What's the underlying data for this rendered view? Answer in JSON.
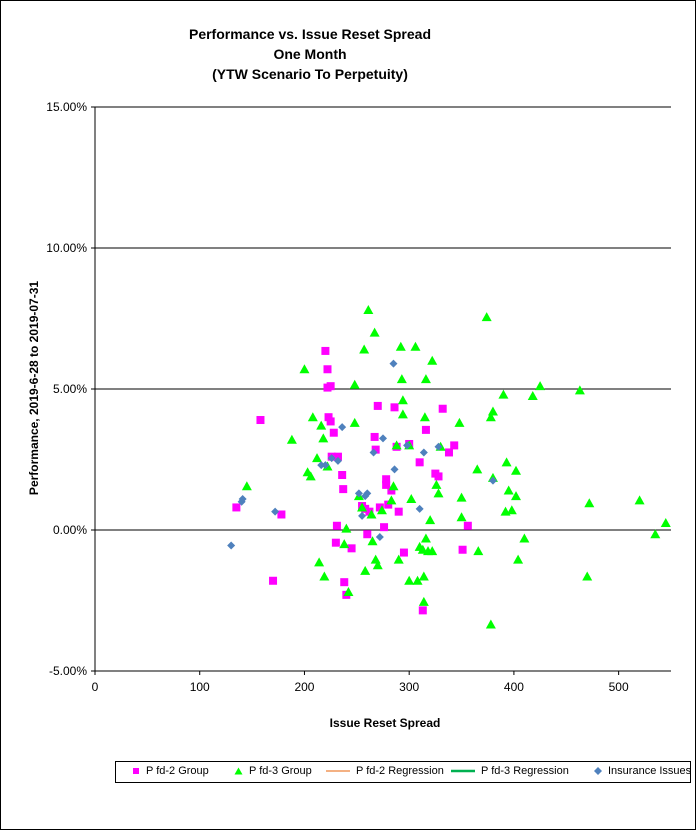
{
  "chart_data": {
    "type": "scatter",
    "title_lines": [
      "Performance vs. Issue Reset Spread",
      "One Month",
      "(YTW Scenario To Perpetuity)"
    ],
    "xlabel": "Issue Reset Spread",
    "ylabel": "Performance, 2019-6-28  to 2019-07-31",
    "xlim": [
      0,
      550
    ],
    "ylim": [
      -5,
      15
    ],
    "x_ticks": [
      0,
      100,
      200,
      300,
      400,
      500
    ],
    "y_ticks": [
      15,
      10,
      5,
      0,
      -5
    ],
    "x_tick_labels": [
      "0",
      "100",
      "200",
      "300",
      "400",
      "500"
    ],
    "y_tick_labels": [
      "15.00%",
      "10.00%",
      "5.00%",
      "0.00%",
      "-5.00%"
    ],
    "grid": "horizontal",
    "legend_position": "bottom",
    "series": [
      {
        "name": "P fd-2 Group",
        "marker": "square",
        "color": "#ff00ff",
        "points": [
          [
            135,
            0.8
          ],
          [
            158,
            3.9
          ],
          [
            170,
            -1.8
          ],
          [
            178,
            0.55
          ],
          [
            220,
            6.35
          ],
          [
            222,
            5.7
          ],
          [
            222,
            5.05
          ],
          [
            223,
            4.0
          ],
          [
            225,
            5.1
          ],
          [
            225,
            3.85
          ],
          [
            226,
            2.6
          ],
          [
            228,
            3.45
          ],
          [
            230,
            -0.45
          ],
          [
            231,
            0.15
          ],
          [
            232,
            2.6
          ],
          [
            236,
            1.95
          ],
          [
            237,
            1.45
          ],
          [
            238,
            -1.85
          ],
          [
            240,
            -2.3
          ],
          [
            245,
            -0.65
          ],
          [
            255,
            0.85
          ],
          [
            258,
            0.75
          ],
          [
            260,
            -0.15
          ],
          [
            262,
            0.65
          ],
          [
            267,
            3.3
          ],
          [
            268,
            2.85
          ],
          [
            270,
            4.4
          ],
          [
            272,
            0.8
          ],
          [
            276,
            0.1
          ],
          [
            278,
            1.8
          ],
          [
            278,
            1.6
          ],
          [
            280,
            0.9
          ],
          [
            283,
            1.4
          ],
          [
            286,
            4.35
          ],
          [
            288,
            2.95
          ],
          [
            290,
            0.65
          ],
          [
            295,
            -0.8
          ],
          [
            300,
            3.05
          ],
          [
            310,
            2.4
          ],
          [
            313,
            -2.85
          ],
          [
            316,
            3.55
          ],
          [
            325,
            2.0
          ],
          [
            328,
            1.9
          ],
          [
            332,
            4.3
          ],
          [
            338,
            2.75
          ],
          [
            343,
            3.0
          ],
          [
            351,
            -0.7
          ],
          [
            356,
            0.15
          ]
        ]
      },
      {
        "name": "P fd-3 Group",
        "marker": "triangle",
        "color": "#00ff00",
        "points": [
          [
            145,
            1.55
          ],
          [
            188,
            3.2
          ],
          [
            200,
            5.7
          ],
          [
            203,
            2.05
          ],
          [
            206,
            1.9
          ],
          [
            208,
            4.0
          ],
          [
            212,
            2.55
          ],
          [
            214,
            -1.15
          ],
          [
            216,
            3.7
          ],
          [
            218,
            3.25
          ],
          [
            219,
            -1.65
          ],
          [
            222,
            2.25
          ],
          [
            238,
            -0.5
          ],
          [
            240,
            0.05
          ],
          [
            242,
            -2.2
          ],
          [
            248,
            3.8
          ],
          [
            248,
            5.15
          ],
          [
            252,
            1.2
          ],
          [
            255,
            0.8
          ],
          [
            257,
            6.4
          ],
          [
            258,
            -1.45
          ],
          [
            261,
            7.8
          ],
          [
            264,
            0.55
          ],
          [
            265,
            -0.4
          ],
          [
            267,
            7.0
          ],
          [
            268,
            -1.05
          ],
          [
            270,
            -1.25
          ],
          [
            274,
            0.7
          ],
          [
            283,
            1.05
          ],
          [
            285,
            1.55
          ],
          [
            288,
            3.0
          ],
          [
            290,
            -1.05
          ],
          [
            292,
            6.5
          ],
          [
            293,
            5.35
          ],
          [
            294,
            4.6
          ],
          [
            294,
            4.1
          ],
          [
            300,
            3.0
          ],
          [
            302,
            1.1
          ],
          [
            300,
            -1.8
          ],
          [
            306,
            6.5
          ],
          [
            308,
            -1.8
          ],
          [
            310,
            -0.6
          ],
          [
            313,
            -0.7
          ],
          [
            314,
            -1.65
          ],
          [
            314,
            -2.55
          ],
          [
            315,
            4.0
          ],
          [
            316,
            -0.3
          ],
          [
            316,
            5.35
          ],
          [
            318,
            -0.75
          ],
          [
            320,
            0.35
          ],
          [
            322,
            6.0
          ],
          [
            322,
            -0.75
          ],
          [
            326,
            1.6
          ],
          [
            328,
            1.3
          ],
          [
            330,
            2.95
          ],
          [
            348,
            3.8
          ],
          [
            350,
            1.15
          ],
          [
            350,
            0.45
          ],
          [
            365,
            2.15
          ],
          [
            366,
            -0.75
          ],
          [
            374,
            7.55
          ],
          [
            378,
            -3.35
          ],
          [
            378,
            4.0
          ],
          [
            380,
            4.2
          ],
          [
            380,
            1.85
          ],
          [
            390,
            4.8
          ],
          [
            392,
            0.65
          ],
          [
            393,
            2.4
          ],
          [
            395,
            1.4
          ],
          [
            398,
            0.7
          ],
          [
            402,
            2.1
          ],
          [
            402,
            1.2
          ],
          [
            404,
            -1.05
          ],
          [
            410,
            -0.3
          ],
          [
            418,
            4.75
          ],
          [
            425,
            5.1
          ],
          [
            463,
            4.95
          ],
          [
            470,
            -1.65
          ],
          [
            472,
            0.95
          ],
          [
            520,
            1.05
          ],
          [
            535,
            -0.15
          ],
          [
            545,
            0.25
          ]
        ]
      },
      {
        "name": "P fd-2 Regression",
        "marker": "line",
        "color": "#f4b183",
        "points": []
      },
      {
        "name": "P fd-3 Regression",
        "marker": "line",
        "color": "#00b050",
        "points": []
      },
      {
        "name": "Insurance Issues",
        "marker": "diamond",
        "color": "#4f81bd",
        "points": [
          [
            130,
            -0.55
          ],
          [
            140,
            1.0
          ],
          [
            141,
            1.1
          ],
          [
            172,
            0.65
          ],
          [
            216,
            2.3
          ],
          [
            220,
            2.3
          ],
          [
            226,
            2.55
          ],
          [
            232,
            2.45
          ],
          [
            236,
            3.65
          ],
          [
            252,
            1.3
          ],
          [
            255,
            0.5
          ],
          [
            258,
            1.2
          ],
          [
            260,
            1.3
          ],
          [
            266,
            2.75
          ],
          [
            272,
            -0.25
          ],
          [
            275,
            3.25
          ],
          [
            285,
            5.9
          ],
          [
            286,
            2.15
          ],
          [
            298,
            3.0
          ],
          [
            310,
            0.75
          ],
          [
            314,
            2.75
          ],
          [
            328,
            2.95
          ],
          [
            380,
            1.75
          ]
        ]
      }
    ]
  }
}
